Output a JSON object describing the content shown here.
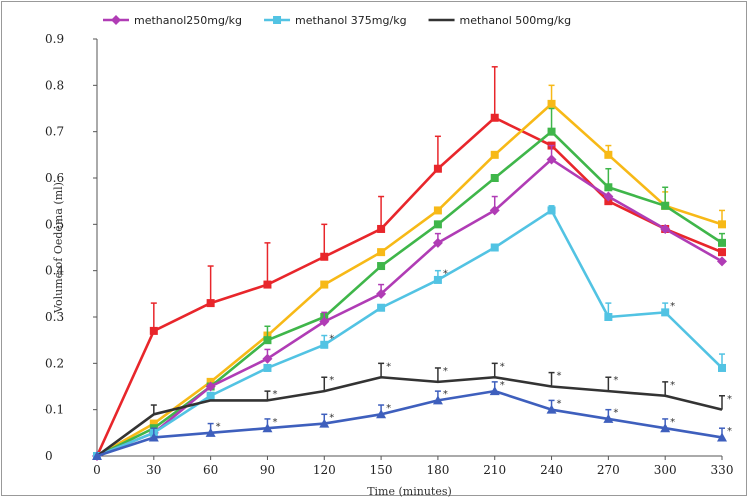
{
  "chart_data": {
    "type": "line",
    "xlabel": "Time (minutes)",
    "ylabel": "Volume of Oedema (ml)",
    "x": [
      0,
      30,
      60,
      90,
      120,
      150,
      180,
      210,
      240,
      270,
      300,
      330
    ],
    "xlim": [
      0,
      330
    ],
    "ylim": [
      0,
      0.9
    ],
    "y_ticks": [
      "0",
      "0.1",
      "0.2",
      "0.3",
      "0.4",
      "0.5",
      "0.6",
      "0.7",
      "0.8",
      "0.9"
    ],
    "x_ticks": [
      "0",
      "30",
      "60",
      "90",
      "120",
      "150",
      "180",
      "210",
      "240",
      "270",
      "300",
      "330"
    ],
    "legend_position": "top",
    "grid": false,
    "series": [
      {
        "color": "#e8262b",
        "marker": "square",
        "values": [
          0,
          0.27,
          0.33,
          0.37,
          0.43,
          0.49,
          0.62,
          0.73,
          0.67,
          0.55,
          0.49,
          0.44
        ],
        "errors": [
          0,
          0.06,
          0.08,
          0.09,
          0.07,
          0.07,
          0.07,
          0.11,
          0,
          0,
          0,
          0
        ]
      },
      {
        "color": "#f7b917",
        "marker": "square",
        "values": [
          0,
          0.07,
          0.16,
          0.26,
          0.37,
          0.44,
          0.53,
          0.65,
          0.76,
          0.65,
          0.54,
          0.5
        ],
        "errors": [
          0,
          0,
          0,
          0,
          0,
          0,
          0,
          0,
          0.04,
          0.02,
          0.03,
          0.03
        ]
      },
      {
        "color": "#3fb64a",
        "marker": "square",
        "values": [
          0,
          0.06,
          0.15,
          0.25,
          0.3,
          0.41,
          0.5,
          0.6,
          0.7,
          0.58,
          0.54,
          0.46
        ],
        "errors": [
          0,
          0,
          0,
          0.03,
          0,
          0,
          0,
          0,
          0.05,
          0.04,
          0.04,
          0.02
        ]
      },
      {
        "name": "methanol250mg/kg",
        "color": "#b03cb5",
        "marker": "diamond",
        "values": [
          0,
          0.05,
          0.15,
          0.21,
          0.29,
          0.35,
          0.46,
          0.53,
          0.64,
          0.56,
          0.49,
          0.42
        ],
        "errors": [
          0,
          0,
          0,
          0.02,
          0.02,
          0.02,
          0.02,
          0.03,
          0.03,
          0,
          0,
          0
        ]
      },
      {
        "name": "methanol 375mg/kg",
        "color": "#52c3e3",
        "marker": "square",
        "values": [
          0,
          0.05,
          0.13,
          0.19,
          0.24,
          0.32,
          0.38,
          0.45,
          0.53,
          0.3,
          0.31,
          0.19
        ],
        "errors": [
          0,
          0,
          0,
          0,
          0.02,
          0,
          0.02,
          0,
          0.01,
          0.03,
          0.02,
          0.03
        ]
      },
      {
        "name": "methanol 500mg/kg",
        "color": "#333333",
        "marker": "none",
        "values": [
          0,
          0.09,
          0.12,
          0.12,
          0.14,
          0.17,
          0.16,
          0.17,
          0.15,
          0.14,
          0.13,
          0.1
        ],
        "errors": [
          0,
          0.02,
          0,
          0.02,
          0.03,
          0.03,
          0.03,
          0.03,
          0.03,
          0.03,
          0.03,
          0.03
        ]
      },
      {
        "color": "#3e5fbd",
        "marker": "triangle",
        "values": [
          0,
          0.04,
          0.05,
          0.06,
          0.07,
          0.09,
          0.12,
          0.14,
          0.1,
          0.08,
          0.06,
          0.04
        ],
        "errors": [
          0,
          0.02,
          0.02,
          0.02,
          0.02,
          0.02,
          0.02,
          0.02,
          0.02,
          0.02,
          0.02,
          0.02
        ]
      }
    ],
    "annotations": [
      {
        "text": "*",
        "series": 5,
        "points": [
          3,
          4,
          5,
          6,
          7,
          8,
          9,
          10,
          11
        ]
      },
      {
        "text": "*",
        "series": 6,
        "points": [
          2,
          3,
          4,
          5,
          6,
          7,
          8,
          9,
          10,
          11
        ]
      },
      {
        "text": "*",
        "series": 4,
        "points": [
          4,
          6,
          10
        ]
      }
    ]
  }
}
